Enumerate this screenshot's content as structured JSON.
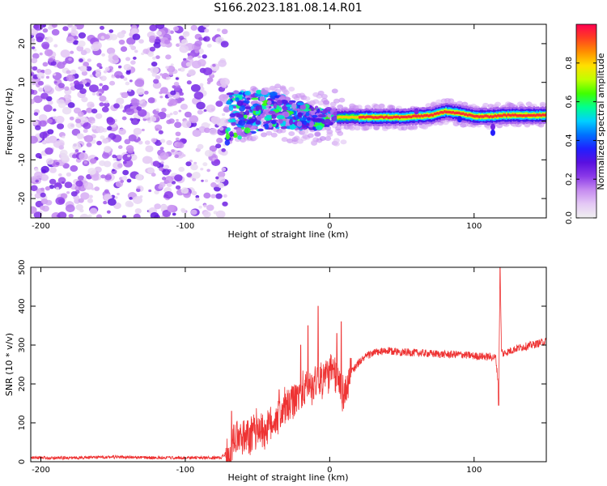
{
  "figure_title": "S166.2023.181.08.14.R01",
  "chart_data": [
    {
      "type": "heatmap",
      "title": "",
      "xlabel": "Height of straight line (km)",
      "ylabel": "Frequency (Hz)",
      "xlim": [
        -207,
        150
      ],
      "ylim": [
        -25,
        25
      ],
      "xticks": [
        -200,
        -100,
        0,
        100
      ],
      "yticks": [
        -20,
        -10,
        0,
        10,
        20
      ],
      "colorbar": {
        "label": "Normalized spectral amplitude",
        "range": [
          0,
          1
        ],
        "ticks": [
          0.0,
          0.2,
          0.4,
          0.6,
          0.8
        ],
        "tick_labels": [
          "0.0",
          "0.2",
          "0.4",
          "0.6",
          "0.8"
        ],
        "colormap": [
          "#f0f0f0",
          "#e4c9f5",
          "#c68cf0",
          "#8b3ae8",
          "#5a10e0",
          "#2020ff",
          "#0070ff",
          "#00d0ff",
          "#00ff90",
          "#40ff00",
          "#c0ff00",
          "#ffe000",
          "#ff9000",
          "#ff4020",
          "#ff0050"
        ]
      },
      "regions": [
        {
          "name": "noise",
          "x": [
            -207,
            -72
          ],
          "f_range": [
            -25,
            25
          ],
          "amplitude": 0.15
        },
        {
          "name": "transition",
          "x": [
            -72,
            10
          ],
          "f_range": [
            -8,
            8
          ],
          "amplitude": 0.45
        },
        {
          "name": "signal",
          "x": [
            10,
            150
          ],
          "f_center": [
            1.0,
            1.5
          ],
          "amplitude": 0.95
        }
      ],
      "ridge": {
        "x": [
          -75,
          -65,
          -55,
          -45,
          -35,
          -25,
          -15,
          -5,
          0,
          10,
          30,
          50,
          70,
          80,
          90,
          100,
          110,
          120,
          140,
          150
        ],
        "f": [
          0,
          1.5,
          2,
          3,
          2.5,
          1.5,
          1,
          0.5,
          0.8,
          1,
          1,
          1,
          1.5,
          2.5,
          2,
          1.2,
          1.2,
          1.5,
          1.5,
          1.5
        ]
      }
    },
    {
      "type": "line",
      "title": "",
      "xlabel": "Height of straight line (km)",
      "ylabel": "SNR (10 * v/v)",
      "xlim": [
        -207,
        150
      ],
      "ylim": [
        0,
        500
      ],
      "xticks": [
        -200,
        -100,
        0,
        100
      ],
      "yticks": [
        0,
        100,
        200,
        300,
        400,
        500
      ],
      "color": "#ee3333",
      "series": [
        {
          "x": [
            -207,
            -180,
            -150,
            -120,
            -90,
            -75,
            -70,
            -65,
            -60,
            -55,
            -50,
            -45,
            -40,
            -35,
            -30,
            -25,
            -20,
            -15,
            -10,
            -5,
            0,
            5,
            10,
            15,
            20,
            25,
            30,
            40,
            50,
            60,
            70,
            80,
            90,
            100,
            110,
            115,
            117,
            118,
            119,
            120,
            125,
            130,
            140,
            150
          ],
          "y": [
            10,
            10,
            12,
            10,
            10,
            10,
            30,
            60,
            55,
            60,
            90,
            80,
            100,
            120,
            140,
            150,
            180,
            190,
            205,
            215,
            230,
            220,
            170,
            230,
            255,
            270,
            280,
            285,
            282,
            280,
            278,
            276,
            276,
            272,
            270,
            268,
            190,
            490,
            285,
            278,
            285,
            292,
            300,
            310
          ]
        }
      ],
      "spikes": [
        {
          "x": -68,
          "y": 130
        },
        {
          "x": -35,
          "y": 185
        },
        {
          "x": -20,
          "y": 300
        },
        {
          "x": -15,
          "y": 350
        },
        {
          "x": -8,
          "y": 400
        },
        {
          "x": 5,
          "y": 330
        },
        {
          "x": 8,
          "y": 360
        },
        {
          "x": 118,
          "y": 500
        },
        {
          "x": 117,
          "y": 145
        }
      ]
    }
  ]
}
